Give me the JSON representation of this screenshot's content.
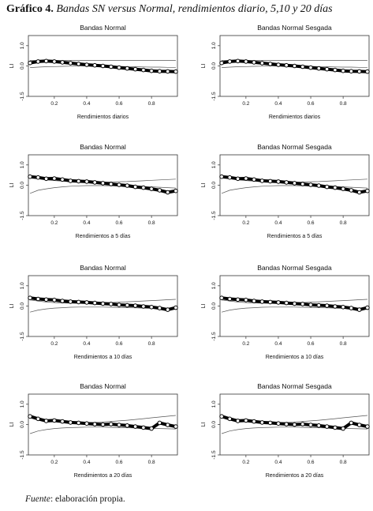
{
  "figure": {
    "label": "Gráfico 4.",
    "title": "Bandas SN versus Normal, rendimientos diario, 5,10 y 20 días",
    "source_label": "Fuente",
    "source_text": ": elaboración propia."
  },
  "chart_data": [
    {
      "type": "scatter",
      "title": "Bandas Normal",
      "xlabel": "Rendimientos diarios",
      "ylabel": "LI",
      "xlim": [
        0.04,
        0.96
      ],
      "ylim": [
        -1.5,
        1.5
      ],
      "xticks": [
        "0.2",
        "0.4",
        "0.6",
        "0.8"
      ],
      "yticks": [
        "1.0",
        "0.0",
        "-1.5"
      ],
      "x": [
        0.05,
        0.1,
        0.15,
        0.2,
        0.25,
        0.3,
        0.35,
        0.4,
        0.45,
        0.5,
        0.55,
        0.6,
        0.65,
        0.7,
        0.75,
        0.8,
        0.85,
        0.9,
        0.95
      ],
      "series": [
        {
          "values": [
            0.15,
            0.22,
            0.24,
            0.22,
            0.18,
            0.14,
            0.1,
            0.06,
            0.03,
            0.0,
            -0.04,
            -0.08,
            -0.12,
            -0.16,
            -0.2,
            -0.24,
            -0.26,
            -0.27,
            -0.28
          ]
        },
        {
          "values": [
            0.27,
            0.27,
            0.27,
            0.27,
            0.27,
            0.27,
            0.27,
            0.27,
            0.27,
            0.27,
            0.27,
            0.27,
            0.27,
            0.27,
            0.27,
            0.27,
            0.27,
            0.27,
            0.27
          ]
        },
        {
          "values": [
            -0.08,
            -0.06,
            -0.04,
            -0.03,
            -0.02,
            -0.01,
            0.0,
            0.0,
            0.0,
            0.0,
            -0.01,
            -0.02,
            -0.03,
            -0.04,
            -0.05,
            -0.06,
            -0.06,
            -0.07,
            -0.07
          ]
        }
      ]
    },
    {
      "type": "scatter",
      "title": "Bandas Normal Sesgada",
      "xlabel": "Rendimientos diarios",
      "ylabel": "LI",
      "xlim": [
        0.04,
        0.96
      ],
      "ylim": [
        -1.5,
        1.5
      ],
      "xticks": [
        "0.2",
        "0.4",
        "0.6",
        "0.8"
      ],
      "yticks": [
        "1.0",
        "0.0",
        "-1.5"
      ],
      "x": [
        0.05,
        0.1,
        0.15,
        0.2,
        0.25,
        0.3,
        0.35,
        0.4,
        0.45,
        0.5,
        0.55,
        0.6,
        0.65,
        0.7,
        0.75,
        0.8,
        0.85,
        0.9,
        0.95
      ],
      "series": [
        {
          "values": [
            0.15,
            0.22,
            0.24,
            0.22,
            0.18,
            0.14,
            0.1,
            0.06,
            0.03,
            0.0,
            -0.04,
            -0.08,
            -0.12,
            -0.16,
            -0.2,
            -0.24,
            -0.26,
            -0.27,
            -0.28
          ]
        },
        {
          "values": [
            0.27,
            0.27,
            0.27,
            0.27,
            0.27,
            0.27,
            0.27,
            0.27,
            0.27,
            0.27,
            0.27,
            0.27,
            0.27,
            0.27,
            0.27,
            0.27,
            0.27,
            0.27,
            0.27
          ]
        },
        {
          "values": [
            -0.08,
            -0.06,
            -0.04,
            -0.03,
            -0.02,
            -0.01,
            0.0,
            0.0,
            0.0,
            0.0,
            -0.01,
            -0.02,
            -0.03,
            -0.04,
            -0.05,
            -0.06,
            -0.06,
            -0.07,
            -0.07
          ]
        }
      ]
    },
    {
      "type": "scatter",
      "title": "Bandas Normal",
      "xlabel": "Rendimientos a 5 días",
      "ylabel": "LI",
      "xlim": [
        0.04,
        0.96
      ],
      "ylim": [
        -1.5,
        1.5
      ],
      "xticks": [
        "0.2",
        "0.4",
        "0.6",
        "0.8"
      ],
      "yticks": [
        "1.0",
        "0.0",
        "-1.5"
      ],
      "x": [
        0.05,
        0.1,
        0.15,
        0.2,
        0.25,
        0.3,
        0.35,
        0.4,
        0.45,
        0.5,
        0.55,
        0.6,
        0.65,
        0.7,
        0.75,
        0.8,
        0.85,
        0.9,
        0.95
      ],
      "series": [
        {
          "values": [
            0.42,
            0.38,
            0.32,
            0.33,
            0.28,
            0.22,
            0.2,
            0.18,
            0.14,
            0.1,
            0.06,
            0.02,
            -0.02,
            -0.08,
            -0.12,
            -0.18,
            -0.25,
            -0.35,
            -0.28
          ]
        },
        {
          "values": [
            0.4,
            0.32,
            0.27,
            0.23,
            0.2,
            0.18,
            0.16,
            0.15,
            0.15,
            0.15,
            0.16,
            0.17,
            0.18,
            0.2,
            0.22,
            0.24,
            0.26,
            0.28,
            0.3
          ]
        },
        {
          "values": [
            -0.4,
            -0.25,
            -0.18,
            -0.12,
            -0.08,
            -0.05,
            -0.03,
            -0.02,
            -0.02,
            -0.02,
            -0.03,
            -0.04,
            -0.05,
            -0.06,
            -0.07,
            -0.08,
            -0.1,
            -0.12,
            -0.14
          ]
        }
      ]
    },
    {
      "type": "scatter",
      "title": "Bandas Normal Sesgada",
      "xlabel": "Rendimientos a 5 días",
      "ylabel": "LI",
      "xlim": [
        0.04,
        0.96
      ],
      "ylim": [
        -1.5,
        1.5
      ],
      "xticks": [
        "0.2",
        "0.4",
        "0.6",
        "0.8"
      ],
      "yticks": [
        "1.0",
        "0.0",
        "-1.5"
      ],
      "x": [
        0.05,
        0.1,
        0.15,
        0.2,
        0.25,
        0.3,
        0.35,
        0.4,
        0.45,
        0.5,
        0.55,
        0.6,
        0.65,
        0.7,
        0.75,
        0.8,
        0.85,
        0.9,
        0.95
      ],
      "series": [
        {
          "values": [
            0.42,
            0.38,
            0.32,
            0.33,
            0.28,
            0.22,
            0.2,
            0.18,
            0.14,
            0.1,
            0.06,
            0.02,
            -0.02,
            -0.08,
            -0.12,
            -0.18,
            -0.25,
            -0.35,
            -0.28
          ]
        },
        {
          "values": [
            0.4,
            0.32,
            0.27,
            0.23,
            0.2,
            0.18,
            0.16,
            0.15,
            0.15,
            0.15,
            0.16,
            0.17,
            0.18,
            0.2,
            0.22,
            0.24,
            0.26,
            0.28,
            0.3
          ]
        },
        {
          "values": [
            -0.4,
            -0.25,
            -0.18,
            -0.12,
            -0.08,
            -0.05,
            -0.03,
            -0.02,
            -0.02,
            -0.02,
            -0.03,
            -0.04,
            -0.05,
            -0.06,
            -0.07,
            -0.08,
            -0.1,
            -0.12,
            -0.14
          ]
        }
      ]
    },
    {
      "type": "scatter",
      "title": "Bandas Normal",
      "xlabel": "Rendimientos a 10 días",
      "ylabel": "LI",
      "xlim": [
        0.04,
        0.96
      ],
      "ylim": [
        -1.5,
        1.5
      ],
      "xticks": [
        "0.2",
        "0.4",
        "0.6",
        "0.8"
      ],
      "yticks": [
        "1.0",
        "0.0",
        "-1.5"
      ],
      "x": [
        0.05,
        0.1,
        0.15,
        0.2,
        0.25,
        0.3,
        0.35,
        0.4,
        0.45,
        0.5,
        0.55,
        0.6,
        0.65,
        0.7,
        0.75,
        0.8,
        0.85,
        0.9,
        0.95
      ],
      "series": [
        {
          "values": [
            0.4,
            0.35,
            0.32,
            0.3,
            0.25,
            0.22,
            0.2,
            0.18,
            0.15,
            0.12,
            0.1,
            0.06,
            0.04,
            0.02,
            -0.02,
            -0.05,
            -0.1,
            -0.18,
            -0.08
          ]
        },
        {
          "values": [
            0.3,
            0.25,
            0.2,
            0.17,
            0.15,
            0.14,
            0.14,
            0.14,
            0.15,
            0.16,
            0.17,
            0.19,
            0.21,
            0.23,
            0.25,
            0.27,
            0.29,
            0.31,
            0.33
          ]
        },
        {
          "values": [
            -0.3,
            -0.2,
            -0.14,
            -0.1,
            -0.08,
            -0.06,
            -0.05,
            -0.05,
            -0.05,
            -0.05,
            -0.06,
            -0.07,
            -0.08,
            -0.09,
            -0.1,
            -0.11,
            -0.12,
            -0.13,
            -0.14
          ]
        }
      ]
    },
    {
      "type": "scatter",
      "title": "Bandas Normal Sesgada",
      "xlabel": "Rendimientos a 10 días",
      "ylabel": "LI",
      "xlim": [
        0.04,
        0.96
      ],
      "ylim": [
        -1.5,
        1.5
      ],
      "xticks": [
        "0.2",
        "0.4",
        "0.6",
        "0.8"
      ],
      "yticks": [
        "1.0",
        "0.0",
        "-1.5"
      ],
      "x": [
        0.05,
        0.1,
        0.15,
        0.2,
        0.25,
        0.3,
        0.35,
        0.4,
        0.45,
        0.5,
        0.55,
        0.6,
        0.65,
        0.7,
        0.75,
        0.8,
        0.85,
        0.9,
        0.95
      ],
      "series": [
        {
          "values": [
            0.4,
            0.35,
            0.32,
            0.3,
            0.25,
            0.22,
            0.2,
            0.18,
            0.15,
            0.12,
            0.1,
            0.06,
            0.04,
            0.02,
            -0.02,
            -0.05,
            -0.1,
            -0.18,
            -0.08
          ]
        },
        {
          "values": [
            0.3,
            0.25,
            0.2,
            0.17,
            0.15,
            0.14,
            0.14,
            0.14,
            0.15,
            0.16,
            0.17,
            0.19,
            0.21,
            0.23,
            0.25,
            0.27,
            0.29,
            0.31,
            0.33
          ]
        },
        {
          "values": [
            -0.3,
            -0.2,
            -0.14,
            -0.1,
            -0.08,
            -0.06,
            -0.05,
            -0.05,
            -0.05,
            -0.05,
            -0.06,
            -0.07,
            -0.08,
            -0.09,
            -0.1,
            -0.11,
            -0.12,
            -0.13,
            -0.14
          ]
        }
      ]
    },
    {
      "type": "scatter",
      "title": "Bandas Normal",
      "xlabel": "Rendimientos a 20 días",
      "ylabel": "LI",
      "xlim": [
        0.04,
        0.96
      ],
      "ylim": [
        -1.5,
        1.5
      ],
      "xticks": [
        "0.2",
        "0.4",
        "0.6",
        "0.8"
      ],
      "yticks": [
        "1.0",
        "0.0",
        "-1.5"
      ],
      "x": [
        0.05,
        0.1,
        0.15,
        0.2,
        0.25,
        0.3,
        0.35,
        0.4,
        0.45,
        0.5,
        0.55,
        0.6,
        0.65,
        0.7,
        0.75,
        0.8,
        0.85,
        0.9,
        0.95
      ],
      "series": [
        {
          "values": [
            0.4,
            0.28,
            0.18,
            0.2,
            0.15,
            0.1,
            0.08,
            0.05,
            0.02,
            0.0,
            0.02,
            -0.02,
            -0.05,
            -0.1,
            -0.15,
            -0.2,
            0.08,
            -0.02,
            -0.1
          ]
        },
        {
          "values": [
            0.45,
            0.3,
            0.2,
            0.15,
            0.12,
            0.1,
            0.1,
            0.1,
            0.11,
            0.13,
            0.15,
            0.18,
            0.21,
            0.25,
            0.29,
            0.33,
            0.37,
            0.41,
            0.45
          ]
        },
        {
          "values": [
            -0.45,
            -0.32,
            -0.25,
            -0.2,
            -0.17,
            -0.15,
            -0.14,
            -0.13,
            -0.13,
            -0.13,
            -0.14,
            -0.15,
            -0.16,
            -0.17,
            -0.18,
            -0.19,
            -0.2,
            -0.21,
            -0.22
          ]
        }
      ]
    },
    {
      "type": "scatter",
      "title": "Bandas Normal Sesgada",
      "xlabel": "Rendimientos a 20 días",
      "ylabel": "LI",
      "xlim": [
        0.04,
        0.96
      ],
      "ylim": [
        -1.5,
        1.5
      ],
      "xticks": [
        "0.2",
        "0.4",
        "0.6",
        "0.8"
      ],
      "yticks": [
        "1.0",
        "0.0",
        "-1.5"
      ],
      "x": [
        0.05,
        0.1,
        0.15,
        0.2,
        0.25,
        0.3,
        0.35,
        0.4,
        0.45,
        0.5,
        0.55,
        0.6,
        0.65,
        0.7,
        0.75,
        0.8,
        0.85,
        0.9,
        0.95
      ],
      "series": [
        {
          "values": [
            0.4,
            0.28,
            0.18,
            0.2,
            0.15,
            0.1,
            0.08,
            0.05,
            0.02,
            0.0,
            0.02,
            -0.02,
            -0.05,
            -0.1,
            -0.15,
            -0.2,
            0.08,
            -0.02,
            -0.1
          ]
        },
        {
          "values": [
            0.45,
            0.3,
            0.2,
            0.15,
            0.12,
            0.1,
            0.1,
            0.1,
            0.11,
            0.13,
            0.15,
            0.18,
            0.21,
            0.25,
            0.29,
            0.33,
            0.37,
            0.41,
            0.45
          ]
        },
        {
          "values": [
            -0.45,
            -0.32,
            -0.25,
            -0.2,
            -0.17,
            -0.15,
            -0.14,
            -0.13,
            -0.13,
            -0.13,
            -0.14,
            -0.15,
            -0.16,
            -0.17,
            -0.18,
            -0.19,
            -0.2,
            -0.21,
            -0.22
          ]
        }
      ]
    }
  ]
}
